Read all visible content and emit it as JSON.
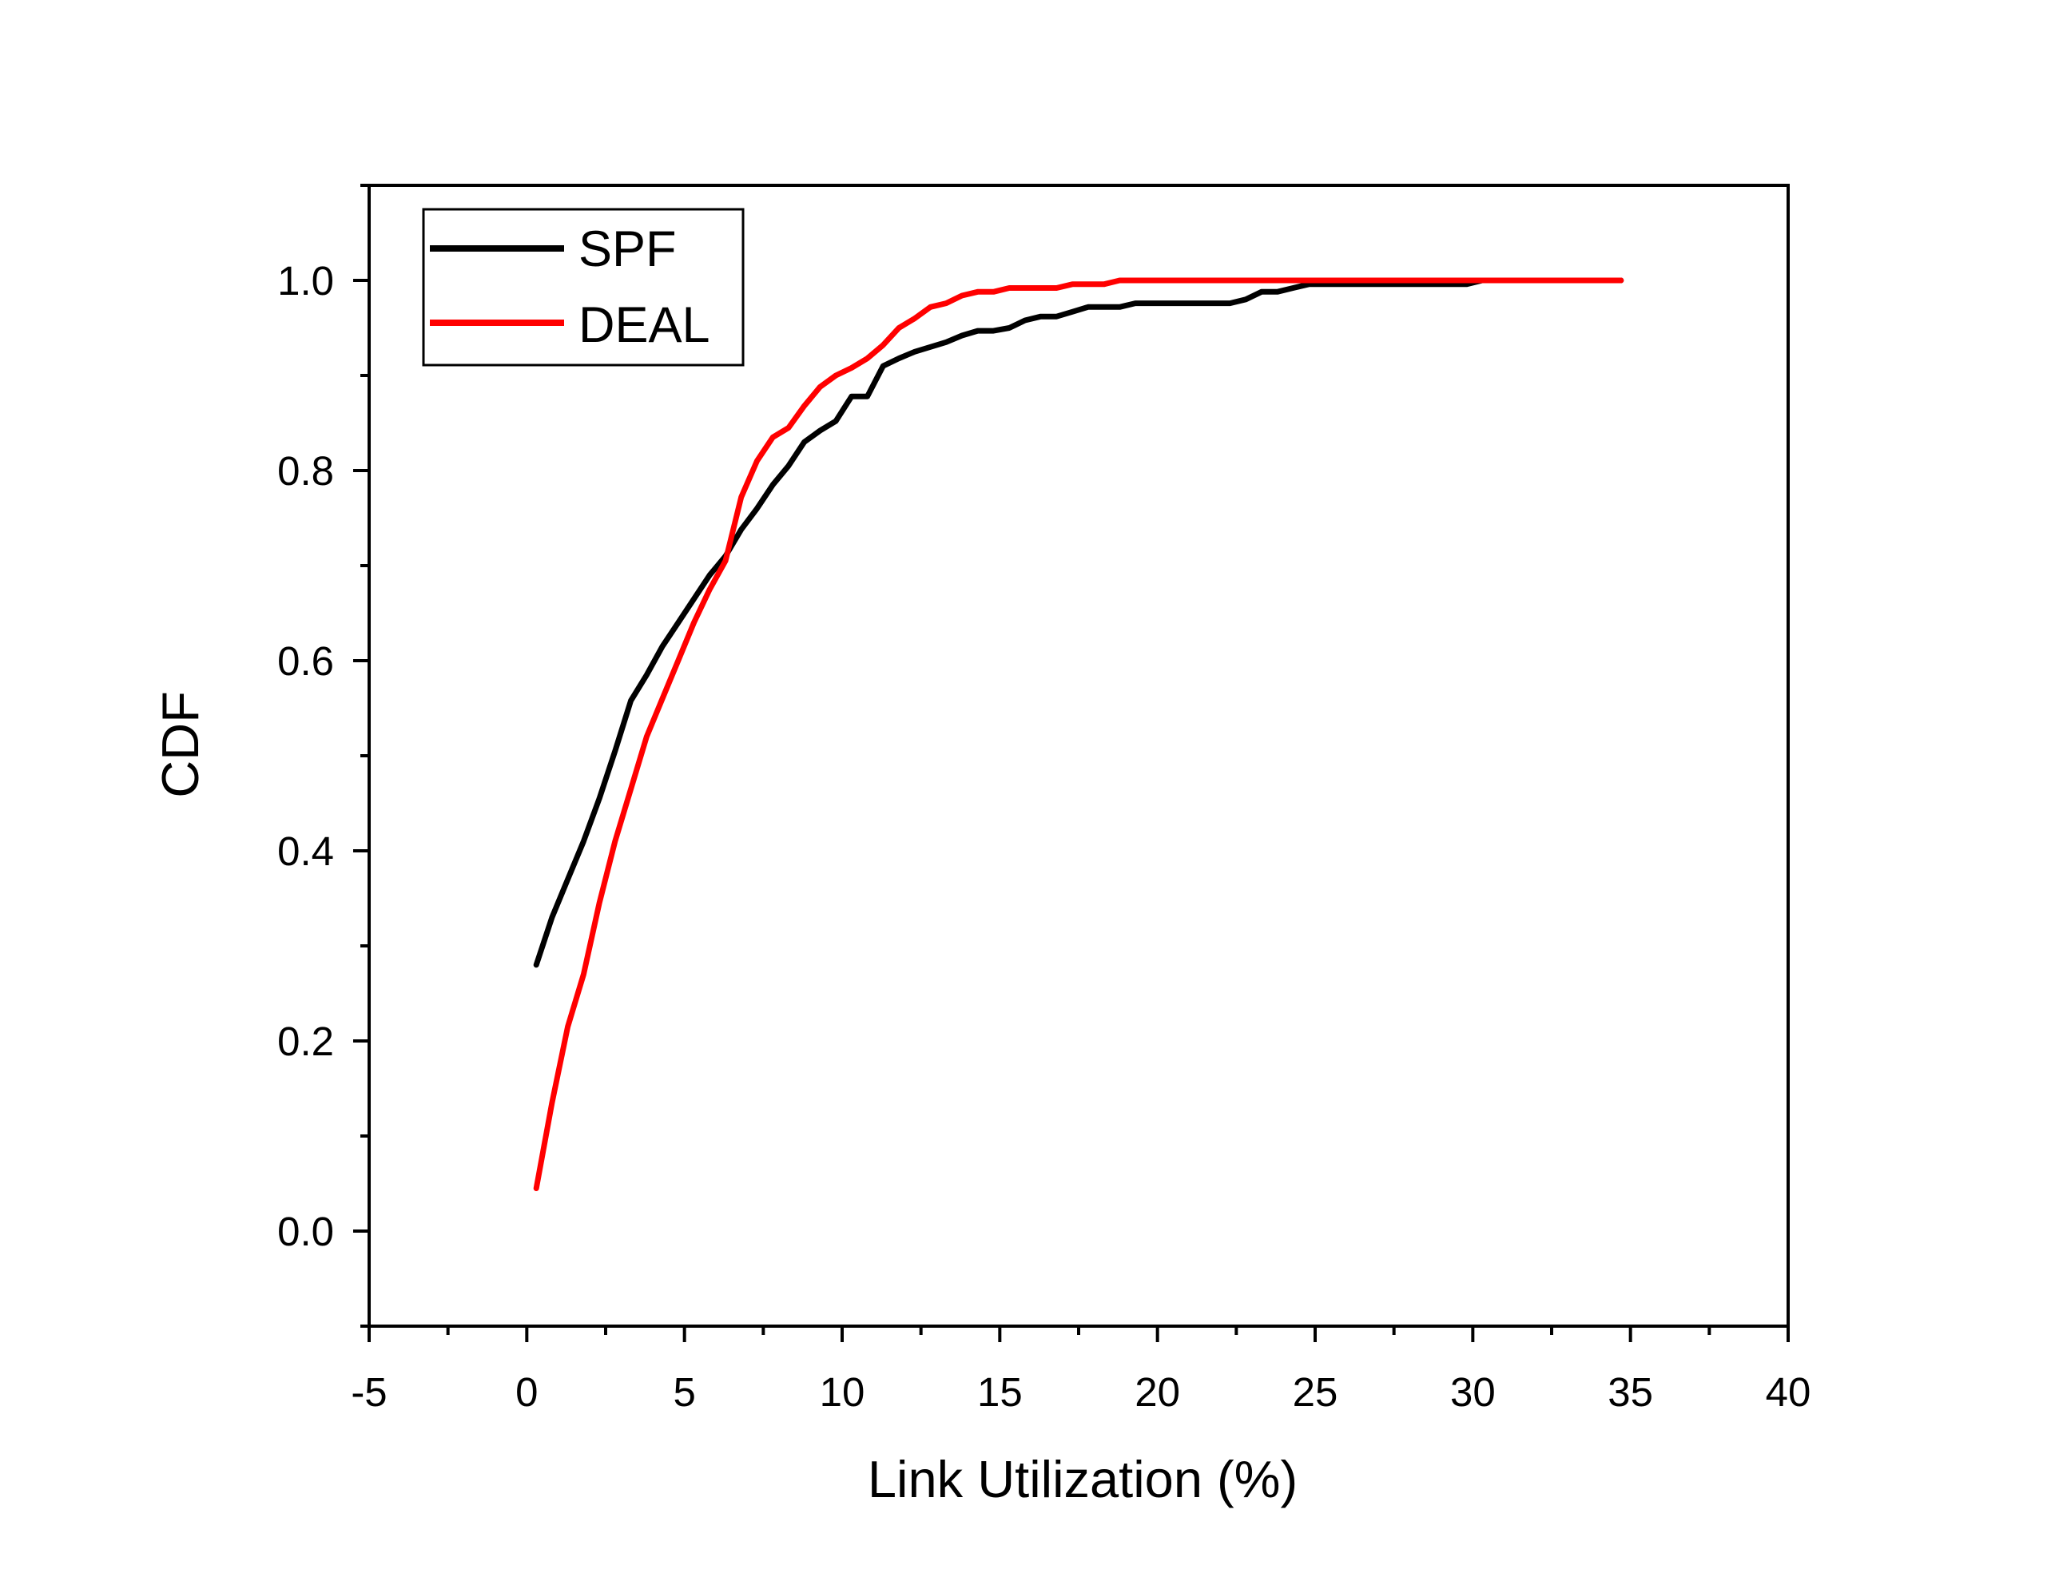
{
  "chart_data": {
    "type": "line",
    "title": "",
    "xlabel": "Link Utilization (%)",
    "ylabel": "CDF",
    "xlim": [
      -5,
      40
    ],
    "ylim": [
      -0.1,
      1.1
    ],
    "x_ticks": [
      -5,
      0,
      5,
      10,
      15,
      20,
      25,
      30,
      35,
      40
    ],
    "x_tick_labels": [
      "-5",
      "0",
      "5",
      "10",
      "15",
      "20",
      "25",
      "30",
      "35",
      "40"
    ],
    "y_ticks": [
      0.0,
      0.2,
      0.4,
      0.6,
      0.8,
      1.0
    ],
    "y_tick_labels": [
      "0.0",
      "0.2",
      "0.4",
      "0.6",
      "0.8",
      "1.0"
    ],
    "grid": false,
    "legend_position": "top-left",
    "series": [
      {
        "name": "SPF",
        "color": "#000000",
        "points": [
          [
            0.3,
            0.28
          ],
          [
            0.8,
            0.33
          ],
          [
            1.3,
            0.37
          ],
          [
            1.8,
            0.41
          ],
          [
            2.3,
            0.455
          ],
          [
            2.8,
            0.505
          ],
          [
            3.3,
            0.558
          ],
          [
            3.8,
            0.585
          ],
          [
            4.3,
            0.615
          ],
          [
            4.8,
            0.64
          ],
          [
            5.3,
            0.665
          ],
          [
            5.8,
            0.69
          ],
          [
            6.3,
            0.71
          ],
          [
            6.8,
            0.738
          ],
          [
            7.3,
            0.76
          ],
          [
            7.8,
            0.785
          ],
          [
            8.3,
            0.805
          ],
          [
            8.8,
            0.83
          ],
          [
            9.3,
            0.842
          ],
          [
            9.8,
            0.852
          ],
          [
            10.3,
            0.878
          ],
          [
            10.8,
            0.878
          ],
          [
            11.3,
            0.91
          ],
          [
            11.8,
            0.918
          ],
          [
            12.3,
            0.925
          ],
          [
            12.8,
            0.93
          ],
          [
            13.3,
            0.935
          ],
          [
            13.8,
            0.942
          ],
          [
            14.3,
            0.947
          ],
          [
            14.8,
            0.947
          ],
          [
            15.3,
            0.95
          ],
          [
            15.8,
            0.958
          ],
          [
            16.3,
            0.962
          ],
          [
            16.8,
            0.962
          ],
          [
            17.3,
            0.967
          ],
          [
            17.8,
            0.972
          ],
          [
            18.3,
            0.972
          ],
          [
            18.8,
            0.972
          ],
          [
            19.3,
            0.976
          ],
          [
            20.3,
            0.976
          ],
          [
            21.3,
            0.976
          ],
          [
            22.3,
            0.976
          ],
          [
            22.8,
            0.98
          ],
          [
            23.3,
            0.988
          ],
          [
            23.8,
            0.988
          ],
          [
            24.3,
            0.992
          ],
          [
            24.8,
            0.996
          ],
          [
            25.3,
            0.996
          ],
          [
            26.3,
            0.996
          ],
          [
            27.3,
            0.996
          ],
          [
            28.3,
            0.996
          ],
          [
            29.3,
            0.996
          ],
          [
            29.8,
            0.996
          ],
          [
            30.3,
            1.0
          ],
          [
            31.3,
            1.0
          ],
          [
            32.3,
            1.0
          ],
          [
            33.3,
            1.0
          ],
          [
            34.3,
            1.0
          ],
          [
            34.7,
            1.0
          ]
        ]
      },
      {
        "name": "DEAL",
        "color": "#ff0000",
        "points": [
          [
            0.3,
            0.045
          ],
          [
            0.8,
            0.135
          ],
          [
            1.3,
            0.215
          ],
          [
            1.8,
            0.27
          ],
          [
            2.3,
            0.345
          ],
          [
            2.8,
            0.41
          ],
          [
            3.3,
            0.465
          ],
          [
            3.8,
            0.52
          ],
          [
            4.3,
            0.56
          ],
          [
            4.8,
            0.6
          ],
          [
            5.3,
            0.64
          ],
          [
            5.8,
            0.675
          ],
          [
            6.3,
            0.705
          ],
          [
            6.8,
            0.772
          ],
          [
            7.3,
            0.81
          ],
          [
            7.8,
            0.835
          ],
          [
            8.3,
            0.845
          ],
          [
            8.8,
            0.868
          ],
          [
            9.3,
            0.888
          ],
          [
            9.8,
            0.9
          ],
          [
            10.3,
            0.908
          ],
          [
            10.8,
            0.918
          ],
          [
            11.3,
            0.932
          ],
          [
            11.8,
            0.95
          ],
          [
            12.3,
            0.96
          ],
          [
            12.8,
            0.972
          ],
          [
            13.3,
            0.976
          ],
          [
            13.8,
            0.984
          ],
          [
            14.3,
            0.988
          ],
          [
            14.8,
            0.988
          ],
          [
            15.3,
            0.992
          ],
          [
            15.8,
            0.992
          ],
          [
            16.3,
            0.992
          ],
          [
            16.8,
            0.992
          ],
          [
            17.3,
            0.996
          ],
          [
            17.8,
            0.996
          ],
          [
            18.3,
            0.996
          ],
          [
            18.8,
            1.0
          ],
          [
            19.8,
            1.0
          ],
          [
            21.3,
            1.0
          ],
          [
            23.3,
            1.0
          ],
          [
            25.3,
            1.0
          ],
          [
            27.3,
            1.0
          ],
          [
            29.3,
            1.0
          ],
          [
            31.3,
            1.0
          ],
          [
            33.3,
            1.0
          ],
          [
            34.7,
            1.0
          ]
        ]
      }
    ]
  }
}
